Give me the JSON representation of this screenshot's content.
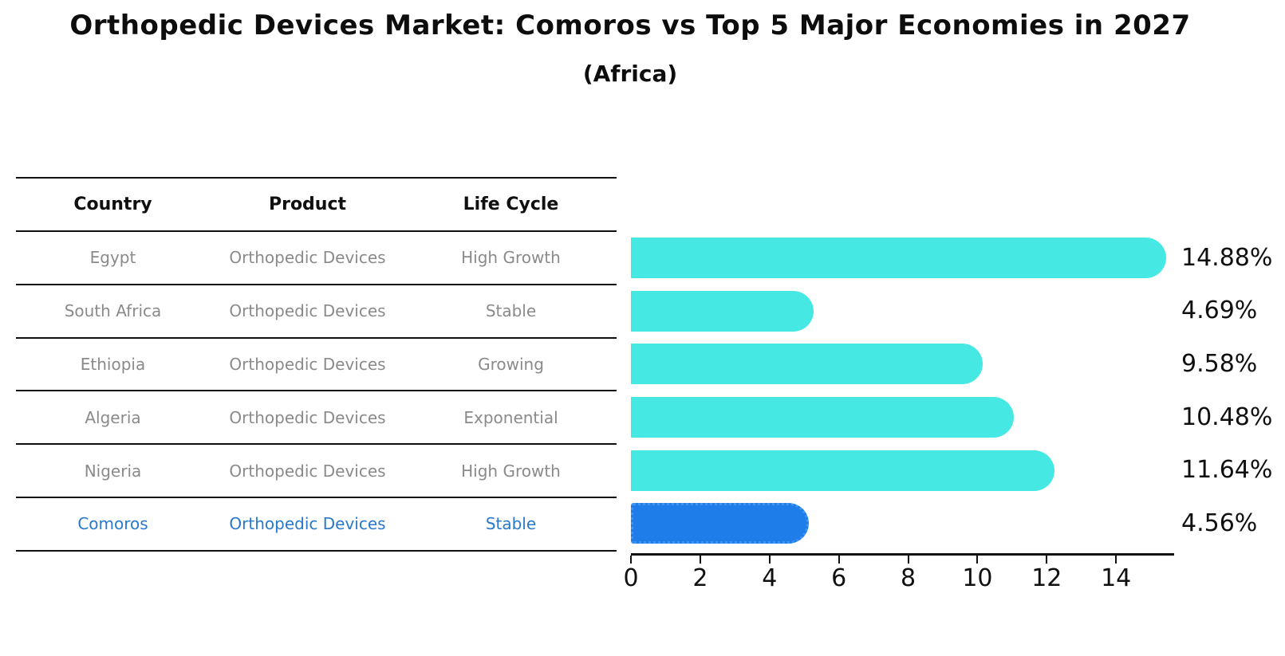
{
  "title": "Orthopedic Devices Market: Comoros vs Top 5 Major Economies in 2027",
  "subtitle": "(Africa)",
  "table": {
    "columns": [
      "Country",
      "Product",
      "Life Cycle"
    ],
    "rows": [
      {
        "country": "Egypt",
        "product": "Orthopedic Devices",
        "life_cycle": "High Growth",
        "highlight": false
      },
      {
        "country": "South Africa",
        "product": "Orthopedic Devices",
        "life_cycle": "Stable",
        "highlight": false
      },
      {
        "country": "Ethiopia",
        "product": "Orthopedic Devices",
        "life_cycle": "Growing",
        "highlight": false
      },
      {
        "country": "Algeria",
        "product": "Orthopedic Devices",
        "life_cycle": "Exponential",
        "highlight": false
      },
      {
        "country": "Nigeria",
        "product": "Orthopedic Devices",
        "life_cycle": "High Growth",
        "highlight": false
      },
      {
        "country": "Comoros",
        "product": "Orthopedic Devices",
        "life_cycle": "Stable",
        "highlight": true
      }
    ]
  },
  "chart_data": {
    "type": "bar",
    "orientation": "horizontal",
    "title": "Orthopedic Devices Market: Comoros vs Top 5 Major Economies in 2027",
    "subtitle": "(Africa)",
    "categories": [
      "Egypt",
      "South Africa",
      "Ethiopia",
      "Algeria",
      "Nigeria",
      "Comoros"
    ],
    "values": [
      14.88,
      4.69,
      9.58,
      10.48,
      11.64,
      4.56
    ],
    "value_labels": [
      "14.88%",
      "4.69%",
      "9.58%",
      "10.48%",
      "11.64%",
      "4.56%"
    ],
    "xticks": [
      0,
      2,
      4,
      6,
      8,
      10,
      12,
      14
    ],
    "xlim": [
      0,
      15.63
    ],
    "grid": false,
    "legend": false,
    "highlight_index": 5
  },
  "colors": {
    "bar": "#45e8e2",
    "highlight_bar": "#1e7de9",
    "highlight_border": "#3f93f2",
    "row_text": "#8a8a8a",
    "highlight_text": "#2878cc",
    "axis": "#101010"
  }
}
